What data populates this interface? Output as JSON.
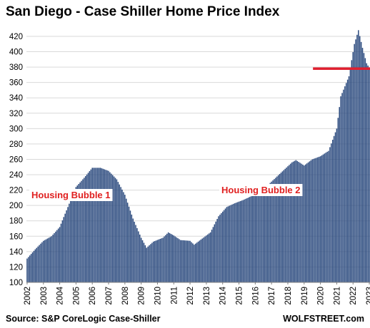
{
  "colors": {
    "bar": "#2b4a7e",
    "annotation": "#e02020",
    "refline": "#e02030",
    "grid": "#d9d9d9",
    "axis": "#808080"
  },
  "chart_data": {
    "type": "bar",
    "title": "San Diego - Case Shiller Home Price Index",
    "xlabel": "",
    "ylabel": "",
    "ylim": [
      100,
      430
    ],
    "grid": true,
    "y_ticks": [
      100,
      120,
      140,
      160,
      180,
      200,
      220,
      240,
      260,
      280,
      300,
      320,
      340,
      360,
      380,
      400,
      420
    ],
    "x_ticks": [
      "2002",
      "2003",
      "2004",
      "2005",
      "2006",
      "2007",
      "2008",
      "2009",
      "2010",
      "2011",
      "2012",
      "2013",
      "2014",
      "2015",
      "2016",
      "2017",
      "2018",
      "2019",
      "2020",
      "2021",
      "2022",
      "2023"
    ],
    "frequency": "monthly",
    "series": [
      {
        "anchors": [
          [
            "2002-01",
            131
          ],
          [
            "2002-07",
            143
          ],
          [
            "2003-01",
            154
          ],
          [
            "2003-07",
            160
          ],
          [
            "2004-01",
            172
          ],
          [
            "2004-07",
            198
          ],
          [
            "2005-01",
            224
          ],
          [
            "2005-07",
            236
          ],
          [
            "2006-01",
            249
          ],
          [
            "2006-07",
            249
          ],
          [
            "2007-01",
            245
          ],
          [
            "2007-07",
            234
          ],
          [
            "2008-01",
            214
          ],
          [
            "2008-07",
            183
          ],
          [
            "2009-01",
            158
          ],
          [
            "2009-05",
            145
          ],
          [
            "2009-10",
            153
          ],
          [
            "2010-05",
            158
          ],
          [
            "2010-09",
            165
          ],
          [
            "2011-01",
            161
          ],
          [
            "2011-06",
            155
          ],
          [
            "2012-01",
            154
          ],
          [
            "2012-04",
            149
          ],
          [
            "2012-10",
            157
          ],
          [
            "2013-04",
            165
          ],
          [
            "2013-10",
            186
          ],
          [
            "2014-04",
            198
          ],
          [
            "2014-10",
            203
          ],
          [
            "2015-04",
            207
          ],
          [
            "2015-10",
            212
          ],
          [
            "2016-04",
            218
          ],
          [
            "2016-10",
            226
          ],
          [
            "2017-04",
            236
          ],
          [
            "2017-10",
            246
          ],
          [
            "2018-04",
            256
          ],
          [
            "2018-07",
            259
          ],
          [
            "2019-01",
            252
          ],
          [
            "2019-07",
            260
          ],
          [
            "2020-01",
            264
          ],
          [
            "2020-07",
            271
          ],
          [
            "2021-01",
            300
          ],
          [
            "2021-04",
            342
          ],
          [
            "2021-10",
            368
          ],
          [
            "2022-02",
            410
          ],
          [
            "2022-05",
            428
          ],
          [
            "2022-08",
            405
          ],
          [
            "2022-11",
            385
          ],
          [
            "2023-01",
            379
          ]
        ]
      }
    ],
    "annotations": [
      {
        "text": "Housing Bubble 1"
      },
      {
        "text": "Housing Bubble 2"
      }
    ],
    "reference_line": {
      "value": 378,
      "from": "2019-08",
      "to": "2023-01"
    },
    "footer_left": "Source: S&P CoreLogic Case-Shiller",
    "footer_right": "WOLFSTREET.com"
  }
}
